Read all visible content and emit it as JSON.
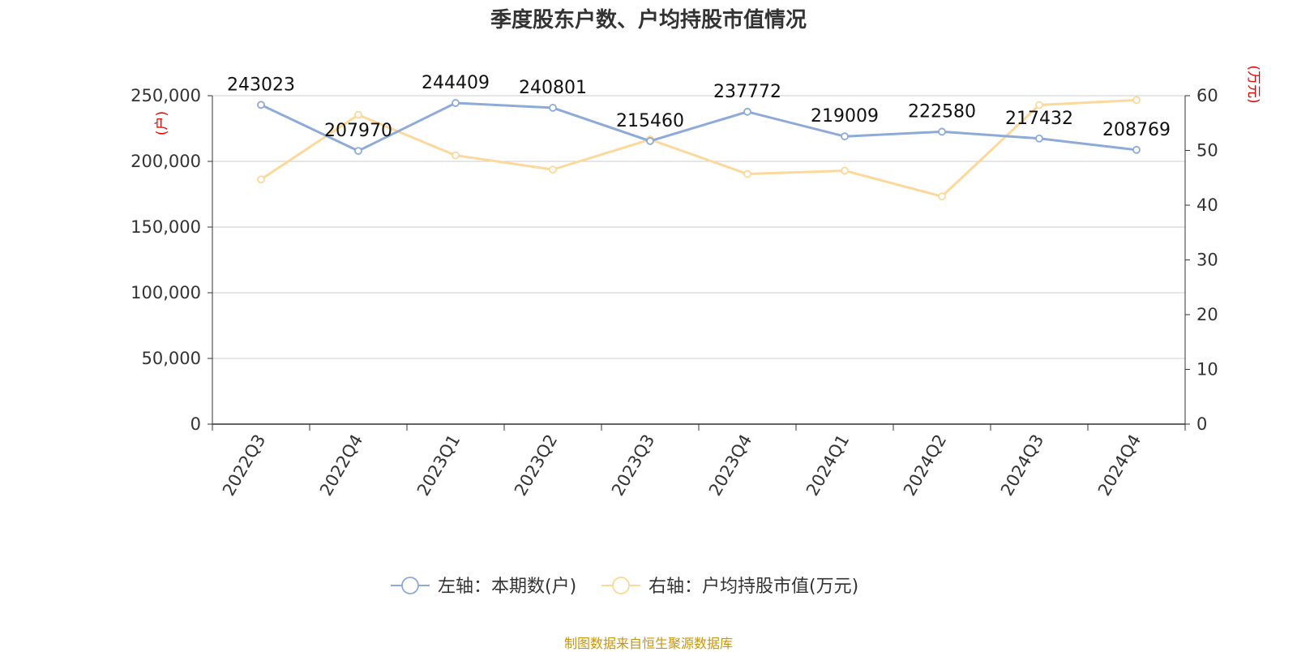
{
  "title": "季度股东户数、户均持股市值情况",
  "source": "制图数据来自恒生聚源数据库",
  "colors": {
    "series_left": "#8eaad8",
    "series_right": "#fcd89a",
    "axis_unit": "#e60000",
    "grid": "#cccccc",
    "axis": "#333333",
    "source": "#c8960c"
  },
  "chart_data": {
    "type": "line",
    "title": "季度股东户数、户均持股市值情况",
    "categories": [
      "2022Q3",
      "2022Q4",
      "2023Q1",
      "2023Q2",
      "2023Q3",
      "2023Q4",
      "2024Q1",
      "2024Q2",
      "2024Q3",
      "2024Q4"
    ],
    "left_axis": {
      "unit_label": "(户)",
      "ylim": [
        0,
        250000
      ],
      "ticks": [
        0,
        50000,
        100000,
        150000,
        200000,
        250000
      ],
      "tick_labels": [
        "0",
        "50,000",
        "100,000",
        "150,000",
        "200,000",
        "250,000"
      ]
    },
    "right_axis": {
      "unit_label": "(万元)",
      "ylim": [
        0,
        60
      ],
      "ticks": [
        0,
        10,
        20,
        30,
        40,
        50,
        60
      ],
      "tick_labels": [
        "0",
        "10",
        "20",
        "30",
        "40",
        "50",
        "60"
      ]
    },
    "series": [
      {
        "name": "左轴：本期数(户)",
        "axis": "left",
        "values": [
          243023,
          207970,
          244409,
          240801,
          215460,
          237772,
          219009,
          222580,
          217432,
          208769
        ],
        "data_labels": [
          "243023",
          "207970",
          "244409",
          "240801",
          "215460",
          "237772",
          "219009",
          "222580",
          "217432",
          "208769"
        ]
      },
      {
        "name": "右轴：户均持股市值(万元)",
        "axis": "right",
        "values": [
          44.7,
          56.5,
          49.1,
          46.5,
          52.0,
          45.7,
          46.3,
          41.6,
          58.3,
          59.2
        ]
      }
    ],
    "grid": true,
    "legend_position": "bottom"
  }
}
